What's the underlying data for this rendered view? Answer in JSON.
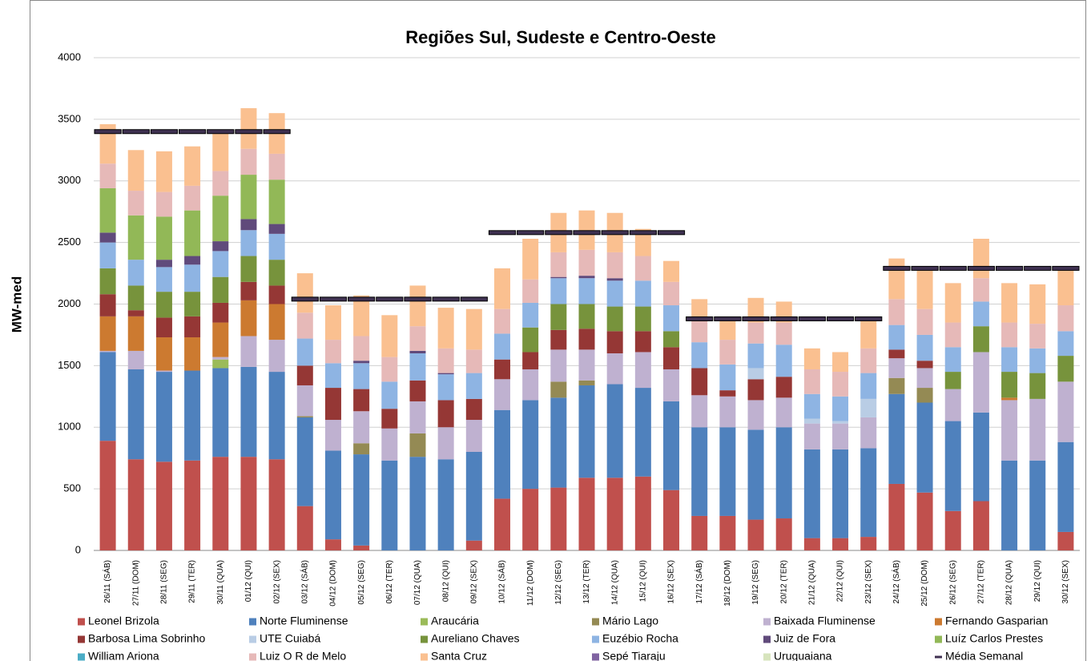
{
  "chart_data": {
    "type": "stacked_bar",
    "title": "Regiões Sul, Sudeste e Centro-Oeste",
    "y_label": "MW-med",
    "categories": [
      "26/11 (SÁB)",
      "27/11 (DOM)",
      "28/11 (SEG)",
      "29/11 (TER)",
      "30/11 (QUA)",
      "01/12 (QUI)",
      "02/12 (SEX)",
      "03/12 (SÁB)",
      "04/12 (DOM)",
      "05/12 (SEG)",
      "06/12 (TER)",
      "07/12 (QUA)",
      "08/12 (QUI)",
      "09/12 (SEX)",
      "10/12 (SÁB)",
      "11/12 (DOM)",
      "12/12 (SEG)",
      "13/12 (TER)",
      "14/12 (QUA)",
      "15/12 (QUI)",
      "16/12 (SEX)",
      "17/12 (SÁB)",
      "18/12 (DOM)",
      "19/12 (SEG)",
      "20/12 (TER)",
      "21/12 (QUA)",
      "22/12 (QUI)",
      "23/12 (SEX)",
      "24/12 (SÁB)",
      "25/12 (DOM)",
      "26/12 (SEG)",
      "27/12 (TER)",
      "28/12 (QUA)",
      "29/12 (QUI)",
      "30/12 (SEX)"
    ],
    "ylim": [
      0,
      4000
    ],
    "yticks": [
      0,
      500,
      1000,
      1500,
      2000,
      2500,
      3000,
      3500,
      4000
    ],
    "grid": true,
    "legend": "bottom",
    "series": [
      {
        "name": "Leonel Brizola",
        "color": "#C0504D",
        "values": [
          890,
          740,
          720,
          730,
          760,
          760,
          740,
          360,
          90,
          40,
          0,
          0,
          0,
          80,
          420,
          500,
          510,
          590,
          590,
          600,
          490,
          280,
          280,
          250,
          260,
          100,
          100,
          110,
          540,
          470,
          320,
          400,
          0,
          0,
          150
        ]
      },
      {
        "name": "Norte Fluminense",
        "color": "#4F81BD",
        "values": [
          720,
          730,
          730,
          730,
          720,
          730,
          710,
          720,
          720,
          740,
          730,
          760,
          740,
          720,
          720,
          720,
          730,
          750,
          760,
          720,
          720,
          720,
          720,
          730,
          740,
          720,
          720,
          720,
          730,
          730,
          730,
          720,
          730,
          730,
          730
        ]
      },
      {
        "name": "Araucária",
        "color": "#9BBB59",
        "values": [
          0,
          0,
          0,
          0,
          70,
          0,
          0,
          0,
          0,
          0,
          0,
          0,
          0,
          0,
          0,
          0,
          0,
          0,
          0,
          0,
          0,
          0,
          0,
          0,
          0,
          0,
          0,
          0,
          0,
          0,
          0,
          0,
          0,
          0,
          0
        ]
      },
      {
        "name": "Mário Lago",
        "color": "#948A54",
        "values": [
          0,
          0,
          0,
          0,
          0,
          0,
          0,
          10,
          0,
          90,
          0,
          190,
          0,
          0,
          0,
          0,
          130,
          40,
          0,
          0,
          0,
          0,
          0,
          0,
          0,
          0,
          0,
          0,
          130,
          120,
          0,
          0,
          0,
          0,
          0
        ]
      },
      {
        "name": "Baixada Fluminense",
        "color": "#BFB1D0",
        "values": [
          10,
          150,
          10,
          0,
          20,
          250,
          260,
          250,
          250,
          260,
          260,
          260,
          260,
          260,
          250,
          250,
          260,
          250,
          250,
          290,
          260,
          260,
          250,
          240,
          240,
          210,
          210,
          250,
          160,
          160,
          260,
          490,
          490,
          500,
          490
        ]
      },
      {
        "name": "Fernando Gasparian",
        "color": "#CC7A30",
        "values": [
          280,
          280,
          270,
          270,
          280,
          290,
          290,
          0,
          0,
          0,
          0,
          0,
          0,
          0,
          0,
          0,
          0,
          0,
          0,
          0,
          0,
          0,
          0,
          0,
          0,
          0,
          0,
          0,
          0,
          0,
          0,
          0,
          20,
          0,
          0
        ]
      },
      {
        "name": "Barbosa Lima Sobrinho",
        "color": "#953735",
        "values": [
          180,
          50,
          160,
          170,
          160,
          150,
          150,
          160,
          260,
          180,
          160,
          170,
          220,
          170,
          160,
          140,
          160,
          170,
          180,
          170,
          180,
          220,
          50,
          170,
          170,
          0,
          0,
          0,
          70,
          60,
          0,
          0,
          0,
          0,
          0
        ]
      },
      {
        "name": "UTE Cuiabá",
        "color": "#B9CDE5",
        "values": [
          0,
          0,
          0,
          0,
          0,
          0,
          0,
          0,
          0,
          0,
          0,
          0,
          0,
          0,
          0,
          0,
          0,
          0,
          0,
          0,
          0,
          0,
          0,
          90,
          0,
          40,
          20,
          150,
          0,
          0,
          0,
          0,
          0,
          0,
          0
        ]
      },
      {
        "name": "Aureliano Chaves",
        "color": "#77933C",
        "values": [
          210,
          200,
          210,
          200,
          210,
          210,
          210,
          0,
          0,
          0,
          0,
          0,
          0,
          0,
          0,
          200,
          210,
          200,
          200,
          200,
          130,
          0,
          0,
          0,
          0,
          0,
          0,
          0,
          0,
          0,
          140,
          210,
          210,
          210,
          210
        ]
      },
      {
        "name": "Euzébio Rocha",
        "color": "#8EB4E3",
        "values": [
          210,
          210,
          200,
          220,
          210,
          210,
          210,
          220,
          200,
          210,
          220,
          220,
          210,
          210,
          210,
          200,
          210,
          210,
          210,
          210,
          210,
          210,
          210,
          200,
          260,
          200,
          200,
          210,
          200,
          210,
          200,
          200,
          200,
          200,
          200
        ]
      },
      {
        "name": "Juiz de Fora",
        "color": "#604A7B",
        "values": [
          80,
          0,
          60,
          70,
          80,
          90,
          80,
          0,
          0,
          20,
          0,
          20,
          10,
          0,
          0,
          0,
          10,
          20,
          20,
          0,
          0,
          0,
          0,
          0,
          0,
          0,
          0,
          0,
          0,
          0,
          0,
          0,
          0,
          0,
          0
        ]
      },
      {
        "name": "Luíz Carlos Prestes",
        "color": "#92B857",
        "values": [
          360,
          360,
          350,
          370,
          370,
          360,
          360,
          0,
          0,
          0,
          0,
          0,
          0,
          0,
          0,
          0,
          0,
          0,
          0,
          0,
          0,
          0,
          0,
          0,
          0,
          0,
          0,
          0,
          0,
          0,
          0,
          0,
          0,
          0,
          0
        ]
      },
      {
        "name": "William Ariona",
        "color": "#4BACC6",
        "values": [
          0,
          0,
          0,
          0,
          0,
          0,
          0,
          0,
          0,
          0,
          0,
          0,
          0,
          0,
          0,
          0,
          0,
          0,
          0,
          0,
          0,
          0,
          0,
          0,
          0,
          0,
          0,
          0,
          0,
          0,
          0,
          0,
          0,
          0,
          0
        ]
      },
      {
        "name": "Luiz O R de Melo",
        "color": "#E6B9B8",
        "values": [
          200,
          200,
          200,
          200,
          200,
          210,
          210,
          210,
          190,
          200,
          200,
          200,
          200,
          190,
          200,
          190,
          200,
          210,
          210,
          200,
          190,
          170,
          200,
          170,
          180,
          200,
          200,
          200,
          210,
          210,
          200,
          190,
          200,
          200,
          210
        ]
      },
      {
        "name": "Santa Cruz",
        "color": "#FAC090",
        "values": [
          320,
          330,
          330,
          320,
          310,
          330,
          330,
          320,
          280,
          330,
          340,
          330,
          330,
          330,
          330,
          330,
          320,
          320,
          320,
          220,
          170,
          180,
          150,
          200,
          170,
          170,
          160,
          220,
          330,
          320,
          320,
          320,
          320,
          320,
          290
        ]
      },
      {
        "name": "Sepé Tiaraju",
        "color": "#8064A2",
        "values": [
          0,
          0,
          0,
          0,
          0,
          0,
          0,
          0,
          0,
          0,
          0,
          0,
          0,
          0,
          0,
          0,
          0,
          0,
          0,
          0,
          0,
          0,
          0,
          0,
          0,
          0,
          0,
          0,
          0,
          0,
          0,
          0,
          0,
          0,
          0
        ]
      },
      {
        "name": "Uruguaiana",
        "color": "#D7E4BD",
        "values": [
          0,
          0,
          0,
          0,
          0,
          0,
          0,
          0,
          0,
          0,
          0,
          0,
          0,
          0,
          0,
          0,
          0,
          0,
          0,
          0,
          0,
          0,
          0,
          0,
          0,
          0,
          0,
          0,
          0,
          0,
          0,
          0,
          0,
          0,
          0
        ]
      },
      {
        "name": "Média Semanal",
        "color": "#3F3151",
        "kind": "marker",
        "values": [
          3400,
          3400,
          3400,
          3400,
          3400,
          3400,
          3400,
          2040,
          2040,
          2040,
          2040,
          2040,
          2040,
          2040,
          2580,
          2580,
          2580,
          2580,
          2580,
          2580,
          2580,
          1880,
          1880,
          1880,
          1880,
          1880,
          1880,
          1880,
          2290,
          2290,
          2290,
          2290,
          2290,
          2290,
          2290
        ]
      }
    ]
  }
}
